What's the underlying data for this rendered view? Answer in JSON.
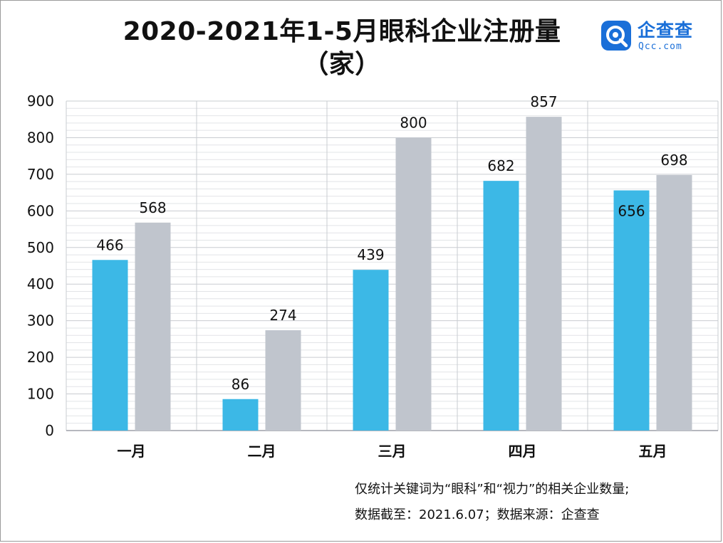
{
  "title": {
    "line1": "2020-2021年1-5月眼科企业注册量",
    "line2": "（家）"
  },
  "logo": {
    "name_cn": "企查查",
    "name_en": "Qcc.com",
    "icon": "magnifier-q-icon",
    "color": "#1a6fd8"
  },
  "notes": {
    "line1": "仅统计关键词为“眼科”和“视力”的相关企业数量;",
    "line2": "数据截至：2021.6.07；数据来源：企查查"
  },
  "chart_data": {
    "type": "bar",
    "categories": [
      "一月",
      "二月",
      "三月",
      "四月",
      "五月"
    ],
    "series": [
      {
        "values": [
          466,
          86,
          439,
          682,
          656
        ],
        "color": "#3cb8e6"
      },
      {
        "values": [
          568,
          274,
          800,
          857,
          698
        ],
        "color": "#c0c5cd"
      }
    ],
    "yticks": [
      0,
      100,
      200,
      300,
      400,
      500,
      600,
      700,
      800,
      900
    ],
    "ylim": [
      0,
      900
    ],
    "grid": true,
    "legend": "none"
  }
}
